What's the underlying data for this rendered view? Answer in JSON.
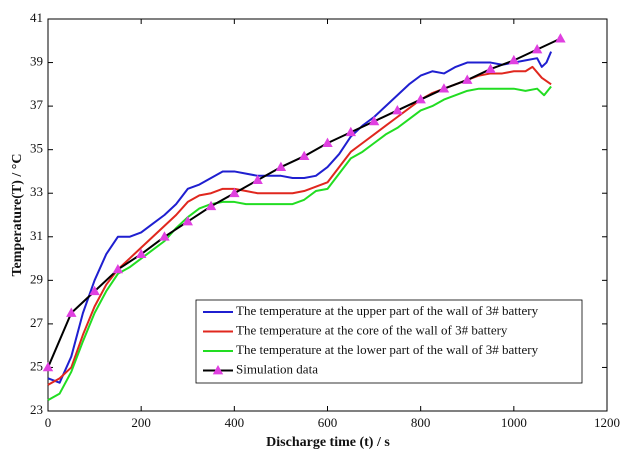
{
  "chart_data": {
    "type": "line",
    "x_label": "Discharge time (t) / s",
    "y_label": "Temperature(T) / °C",
    "xlim": [
      0,
      1200
    ],
    "xticks": [
      0,
      200,
      400,
      600,
      800,
      1000,
      1200
    ],
    "ylim": [
      23,
      41
    ],
    "yticks": [
      23,
      25,
      27,
      29,
      31,
      33,
      35,
      37,
      39,
      41
    ],
    "legend": "lower right",
    "series": [
      {
        "name": "The temperature at the upper part of the wall of 3# battery",
        "color": "#1f1fd0",
        "x": [
          0,
          25,
          50,
          75,
          100,
          125,
          150,
          175,
          200,
          225,
          250,
          275,
          300,
          325,
          350,
          375,
          400,
          425,
          450,
          475,
          500,
          525,
          550,
          575,
          600,
          625,
          650,
          675,
          700,
          725,
          750,
          775,
          800,
          825,
          850,
          875,
          900,
          925,
          950,
          975,
          1000,
          1025,
          1050,
          1060,
          1070,
          1080
        ],
        "values": [
          24.5,
          24.3,
          25.5,
          27.5,
          29.0,
          30.2,
          31.0,
          31.0,
          31.2,
          31.6,
          32.0,
          32.5,
          33.2,
          33.4,
          33.7,
          34.0,
          34.0,
          33.9,
          33.8,
          33.8,
          33.8,
          33.7,
          33.7,
          33.8,
          34.2,
          34.8,
          35.6,
          36.1,
          36.5,
          37.0,
          37.5,
          38.0,
          38.4,
          38.6,
          38.5,
          38.8,
          39.0,
          39.0,
          39.0,
          38.9,
          39.0,
          39.1,
          39.2,
          38.8,
          39.0,
          39.5
        ]
      },
      {
        "name": "The temperature at the core of the wall of 3# battery",
        "color": "#e0271e",
        "x": [
          0,
          25,
          50,
          75,
          100,
          125,
          150,
          175,
          200,
          225,
          250,
          275,
          300,
          325,
          350,
          375,
          400,
          425,
          450,
          475,
          500,
          525,
          550,
          575,
          600,
          625,
          650,
          675,
          700,
          725,
          750,
          775,
          800,
          825,
          850,
          875,
          900,
          925,
          950,
          975,
          1000,
          1025,
          1040,
          1060,
          1080
        ],
        "values": [
          24.2,
          24.5,
          25.0,
          26.5,
          27.8,
          28.8,
          29.5,
          30.0,
          30.5,
          31.0,
          31.5,
          32.0,
          32.6,
          32.9,
          33.0,
          33.2,
          33.2,
          33.1,
          33.0,
          33.0,
          33.0,
          33.0,
          33.1,
          33.3,
          33.5,
          34.2,
          34.9,
          35.3,
          35.7,
          36.1,
          36.5,
          36.9,
          37.3,
          37.6,
          37.8,
          38.0,
          38.2,
          38.4,
          38.5,
          38.5,
          38.6,
          38.6,
          38.8,
          38.3,
          38.0
        ]
      },
      {
        "name": "The temperature at the lower part of the wall of 3# battery",
        "color": "#22dd22",
        "x": [
          0,
          25,
          50,
          75,
          100,
          125,
          150,
          175,
          200,
          225,
          250,
          275,
          300,
          325,
          350,
          375,
          400,
          425,
          450,
          475,
          500,
          525,
          550,
          575,
          600,
          625,
          650,
          675,
          700,
          725,
          750,
          775,
          800,
          825,
          850,
          875,
          900,
          925,
          950,
          975,
          1000,
          1025,
          1050,
          1065,
          1080
        ],
        "values": [
          23.5,
          23.8,
          24.8,
          26.2,
          27.5,
          28.5,
          29.3,
          29.6,
          30.0,
          30.4,
          30.8,
          31.4,
          31.9,
          32.3,
          32.5,
          32.6,
          32.6,
          32.5,
          32.5,
          32.5,
          32.5,
          32.5,
          32.7,
          33.1,
          33.2,
          33.9,
          34.6,
          34.9,
          35.3,
          35.7,
          36.0,
          36.4,
          36.8,
          37.0,
          37.3,
          37.5,
          37.7,
          37.8,
          37.8,
          37.8,
          37.8,
          37.7,
          37.8,
          37.5,
          37.9
        ]
      },
      {
        "name": "Simulation data",
        "color": "#000000",
        "marker": "triangle",
        "marker_color": "#e040e0",
        "x": [
          0,
          50,
          100,
          150,
          200,
          250,
          300,
          350,
          400,
          450,
          500,
          550,
          600,
          650,
          700,
          750,
          800,
          850,
          900,
          950,
          1000,
          1050,
          1100
        ],
        "values": [
          25.0,
          27.5,
          28.5,
          29.5,
          30.2,
          31.0,
          31.7,
          32.4,
          33.0,
          33.6,
          34.2,
          34.7,
          35.3,
          35.8,
          36.3,
          36.8,
          37.3,
          37.8,
          38.2,
          38.7,
          39.1,
          39.6,
          40.1
        ]
      }
    ]
  }
}
